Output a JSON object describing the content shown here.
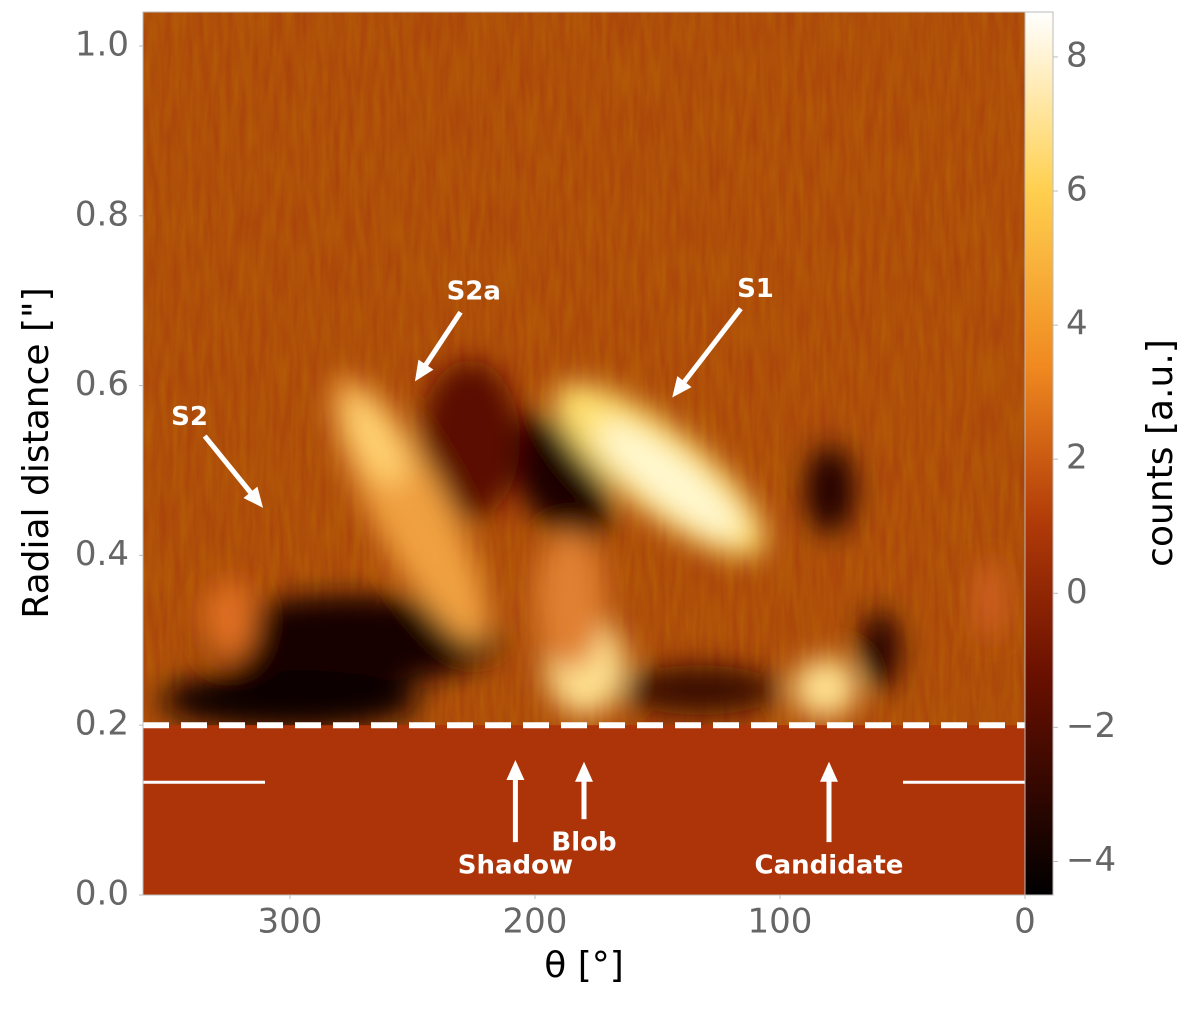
{
  "chart_data": {
    "type": "heatmap",
    "xlabel": "θ [°]",
    "ylabel": "Radial distance [\"]",
    "colorbar_label": "counts [a.u.]",
    "xlim": [
      360,
      0
    ],
    "xticks": [
      300,
      200,
      100,
      0
    ],
    "ylim": [
      0,
      1.04
    ],
    "yticks": [
      0.0,
      0.2,
      0.4,
      0.6,
      0.8,
      1.0
    ],
    "clim": [
      -4.5,
      8.67
    ],
    "cticks": [
      {
        "value": -4,
        "label": "−4"
      },
      {
        "value": -2,
        "label": "−2"
      },
      0,
      2,
      4,
      6,
      8
    ],
    "mask_radius": 0.2,
    "annotations": [
      {
        "text": "S2",
        "x": 311,
        "y": 0.456,
        "xtext": 341,
        "ytext": 0.5625
      },
      {
        "text": "S2a",
        "x": 249,
        "y": 0.605,
        "xtext": 225,
        "ytext": 0.71
      },
      {
        "text": "S1",
        "x": 144,
        "y": 0.586,
        "xtext": 110,
        "ytext": 0.713
      },
      {
        "text": "Shadow",
        "x": 208,
        "y": 0.159,
        "xtext": 208,
        "ytext": 0.034
      },
      {
        "text": "Blob",
        "x": 180,
        "y": 0.157,
        "xtext": 180,
        "ytext": 0.061
      },
      {
        "text": "Candidate",
        "x": 80,
        "y": 0.157,
        "xtext": 80,
        "ytext": 0.034
      }
    ]
  }
}
